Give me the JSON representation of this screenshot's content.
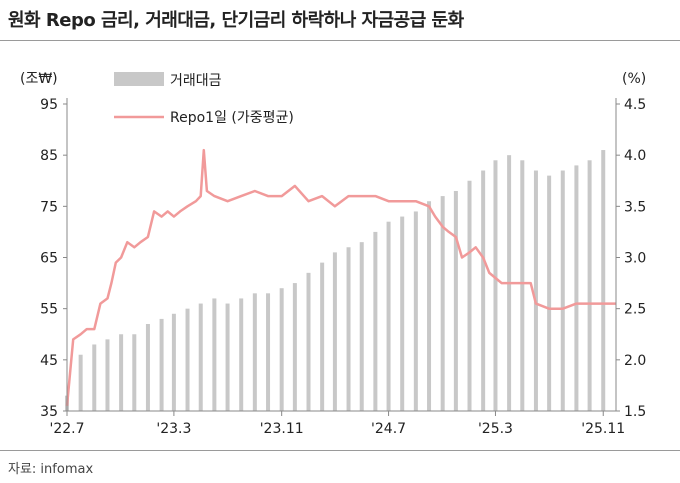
{
  "page": {
    "title": "원화 Repo 금리, 거래대금, 단기금리 하락하나 자금공급 둔화",
    "source": "자료: infomax"
  },
  "chart_data": {
    "type": "bar+line",
    "title": "원화 Repo 금리, 거래대금, 단기금리 하락하나 자금공급 둔화",
    "y_left_label": "(조₩)",
    "y_right_label": "(%)",
    "y_left_range": [
      35,
      95
    ],
    "y_right_range": [
      1.5,
      4.5
    ],
    "y_left_ticks": [
      35,
      45,
      55,
      65,
      75,
      85,
      95
    ],
    "y_right_ticks": [
      "1.5",
      "2.0",
      "2.5",
      "3.0",
      "3.5",
      "4.0",
      "4.5"
    ],
    "x_range": [
      "2022-07-01",
      "2025-11-30"
    ],
    "x_ticks": [
      {
        "label": "'22.7",
        "date": "2022-07-01"
      },
      {
        "label": "'23.3",
        "date": "2023-03-01"
      },
      {
        "label": "'23.11",
        "date": "2023-11-01"
      },
      {
        "label": "'24.7",
        "date": "2024-07-01"
      },
      {
        "label": "'25.3",
        "date": "2025-03-01"
      },
      {
        "label": "'25.11",
        "date": "2025-11-01"
      }
    ],
    "legend_position": "top-left",
    "grid": false,
    "series": [
      {
        "name": "거래대금",
        "type": "bar",
        "axis": "left",
        "color": "#c8c8c8",
        "points": [
          [
            "2022-07-01",
            38
          ],
          [
            "2022-08-01",
            46
          ],
          [
            "2022-09-01",
            48
          ],
          [
            "2022-10-01",
            49
          ],
          [
            "2022-11-01",
            50
          ],
          [
            "2022-12-01",
            50
          ],
          [
            "2023-01-01",
            52
          ],
          [
            "2023-02-01",
            53
          ],
          [
            "2023-03-01",
            54
          ],
          [
            "2023-04-01",
            55
          ],
          [
            "2023-05-01",
            56
          ],
          [
            "2023-06-01",
            57
          ],
          [
            "2023-07-01",
            56
          ],
          [
            "2023-08-01",
            57
          ],
          [
            "2023-09-01",
            58
          ],
          [
            "2023-10-01",
            58
          ],
          [
            "2023-11-01",
            59
          ],
          [
            "2023-12-01",
            60
          ],
          [
            "2024-01-01",
            62
          ],
          [
            "2024-02-01",
            64
          ],
          [
            "2024-03-01",
            66
          ],
          [
            "2024-04-01",
            67
          ],
          [
            "2024-05-01",
            68
          ],
          [
            "2024-06-01",
            70
          ],
          [
            "2024-07-01",
            72
          ],
          [
            "2024-08-01",
            73
          ],
          [
            "2024-09-01",
            74
          ],
          [
            "2024-10-01",
            76
          ],
          [
            "2024-11-01",
            77
          ],
          [
            "2024-12-01",
            78
          ],
          [
            "2025-01-01",
            80
          ],
          [
            "2025-02-01",
            82
          ],
          [
            "2025-03-01",
            84
          ],
          [
            "2025-04-01",
            85
          ],
          [
            "2025-05-01",
            84
          ],
          [
            "2025-06-01",
            82
          ],
          [
            "2025-07-01",
            81
          ],
          [
            "2025-08-01",
            82
          ],
          [
            "2025-09-01",
            83
          ],
          [
            "2025-10-01",
            84
          ],
          [
            "2025-11-01",
            86
          ]
        ]
      },
      {
        "name": "Repo1일 (가중평균)",
        "type": "line",
        "axis": "right",
        "color": "#f19a9a",
        "points": [
          [
            "2022-07-01",
            1.55
          ],
          [
            "2022-07-15",
            2.2
          ],
          [
            "2022-08-01",
            2.25
          ],
          [
            "2022-08-15",
            2.3
          ],
          [
            "2022-09-01",
            2.3
          ],
          [
            "2022-09-15",
            2.55
          ],
          [
            "2022-10-01",
            2.6
          ],
          [
            "2022-10-10",
            2.75
          ],
          [
            "2022-10-20",
            2.95
          ],
          [
            "2022-11-01",
            3.0
          ],
          [
            "2022-11-15",
            3.15
          ],
          [
            "2022-12-01",
            3.1
          ],
          [
            "2022-12-15",
            3.15
          ],
          [
            "2023-01-01",
            3.2
          ],
          [
            "2023-01-15",
            3.45
          ],
          [
            "2023-02-01",
            3.4
          ],
          [
            "2023-02-15",
            3.45
          ],
          [
            "2023-03-01",
            3.4
          ],
          [
            "2023-03-15",
            3.45
          ],
          [
            "2023-04-01",
            3.5
          ],
          [
            "2023-04-20",
            3.55
          ],
          [
            "2023-05-01",
            3.6
          ],
          [
            "2023-05-08",
            4.05
          ],
          [
            "2023-05-15",
            3.65
          ],
          [
            "2023-06-01",
            3.6
          ],
          [
            "2023-07-01",
            3.55
          ],
          [
            "2023-08-01",
            3.6
          ],
          [
            "2023-09-01",
            3.65
          ],
          [
            "2023-10-01",
            3.6
          ],
          [
            "2023-11-01",
            3.6
          ],
          [
            "2023-12-01",
            3.7
          ],
          [
            "2024-01-01",
            3.55
          ],
          [
            "2024-02-01",
            3.6
          ],
          [
            "2024-03-01",
            3.5
          ],
          [
            "2024-04-01",
            3.6
          ],
          [
            "2024-05-01",
            3.6
          ],
          [
            "2024-06-01",
            3.6
          ],
          [
            "2024-07-01",
            3.55
          ],
          [
            "2024-08-01",
            3.55
          ],
          [
            "2024-09-01",
            3.55
          ],
          [
            "2024-10-01",
            3.5
          ],
          [
            "2024-10-15",
            3.4
          ],
          [
            "2024-11-01",
            3.3
          ],
          [
            "2024-11-15",
            3.25
          ],
          [
            "2024-12-01",
            3.2
          ],
          [
            "2024-12-15",
            3.0
          ],
          [
            "2025-01-01",
            3.05
          ],
          [
            "2025-01-15",
            3.1
          ],
          [
            "2025-02-01",
            3.0
          ],
          [
            "2025-02-15",
            2.85
          ],
          [
            "2025-03-01",
            2.8
          ],
          [
            "2025-03-15",
            2.75
          ],
          [
            "2025-04-01",
            2.75
          ],
          [
            "2025-05-01",
            2.75
          ],
          [
            "2025-05-20",
            2.75
          ],
          [
            "2025-06-01",
            2.55
          ],
          [
            "2025-07-01",
            2.5
          ],
          [
            "2025-08-01",
            2.5
          ],
          [
            "2025-09-01",
            2.55
          ],
          [
            "2025-10-01",
            2.55
          ],
          [
            "2025-11-01",
            2.55
          ],
          [
            "2025-11-30",
            2.55
          ]
        ]
      }
    ]
  }
}
